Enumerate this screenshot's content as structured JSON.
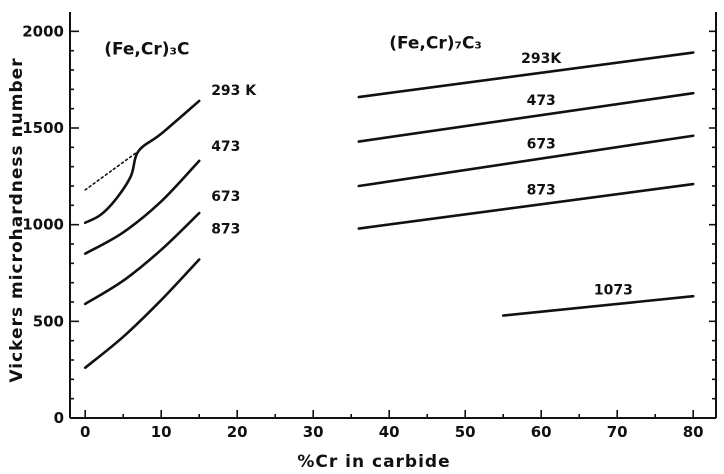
{
  "chart_data": {
    "type": "line",
    "title": "",
    "xlabel": "%Cr in carbide",
    "ylabel": "Vickers microhardness number",
    "xlim": [
      -2,
      83
    ],
    "ylim": [
      0,
      2100
    ],
    "xticks": [
      0,
      10,
      20,
      30,
      40,
      50,
      60,
      70,
      80
    ],
    "yticks": [
      0,
      500,
      1000,
      1500,
      2000
    ],
    "grid": false,
    "legend": "none",
    "groups": [
      {
        "label": "(Fe,Cr)₃C"
      },
      {
        "label": "(Fe,Cr)₇C₃"
      }
    ],
    "series": [
      {
        "label": "293 K",
        "points": [
          [
            0,
            1010
          ],
          [
            2,
            1050
          ],
          [
            4,
            1130
          ],
          [
            6,
            1250
          ],
          [
            7,
            1380
          ],
          [
            10,
            1470
          ],
          [
            15,
            1640
          ]
        ]
      },
      {
        "label": "",
        "points": [
          [
            0,
            1180
          ],
          [
            3.5,
            1280
          ],
          [
            7,
            1380
          ]
        ],
        "dotted": true
      },
      {
        "label": "473",
        "points": [
          [
            0,
            850
          ],
          [
            5,
            960
          ],
          [
            10,
            1120
          ],
          [
            15,
            1330
          ]
        ]
      },
      {
        "label": "673",
        "points": [
          [
            0,
            590
          ],
          [
            5,
            710
          ],
          [
            10,
            870
          ],
          [
            15,
            1060
          ]
        ]
      },
      {
        "label": "873",
        "points": [
          [
            0,
            260
          ],
          [
            5,
            420
          ],
          [
            10,
            610
          ],
          [
            15,
            820
          ]
        ]
      },
      {
        "label": "293K",
        "points": [
          [
            36,
            1660
          ],
          [
            80,
            1890
          ]
        ]
      },
      {
        "label": "473",
        "points": [
          [
            36,
            1430
          ],
          [
            80,
            1680
          ]
        ]
      },
      {
        "label": "673",
        "points": [
          [
            36,
            1200
          ],
          [
            80,
            1460
          ]
        ]
      },
      {
        "label": "873",
        "points": [
          [
            36,
            980
          ],
          [
            80,
            1210
          ]
        ]
      },
      {
        "label": "1073",
        "points": [
          [
            55,
            530
          ],
          [
            80,
            630
          ]
        ]
      }
    ]
  }
}
